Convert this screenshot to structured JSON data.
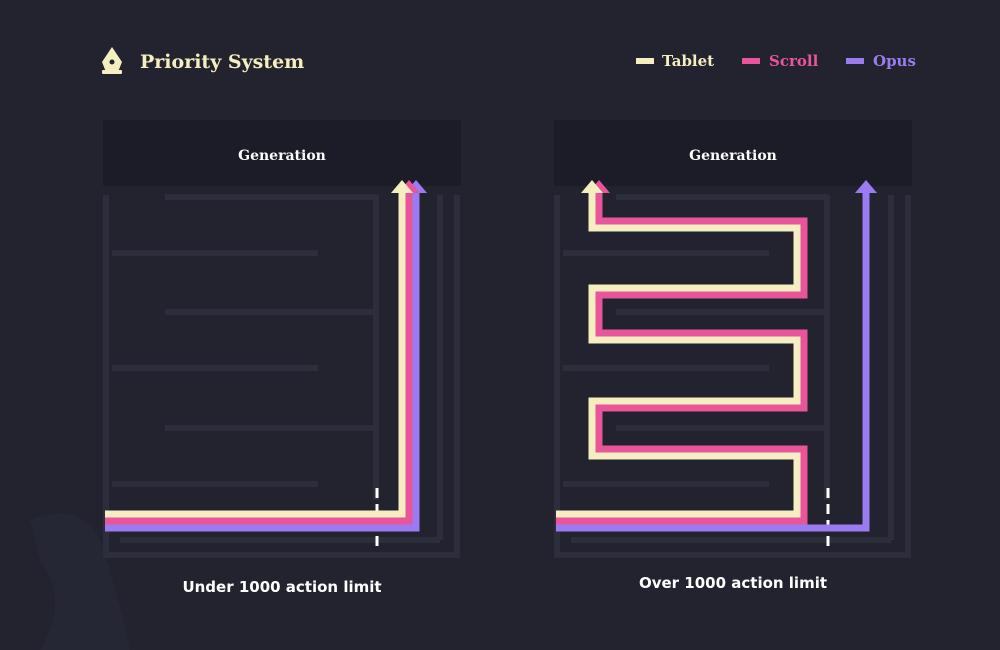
{
  "header": {
    "title": "Priority System"
  },
  "legend": [
    {
      "label": "Tablet"
    },
    {
      "label": "Scroll"
    },
    {
      "label": "Opus"
    }
  ],
  "panels": [
    {
      "heading": "Generation",
      "caption": "Under 1000 action limit"
    },
    {
      "heading": "Generation",
      "caption": "Over 1000 action limit"
    }
  ]
}
